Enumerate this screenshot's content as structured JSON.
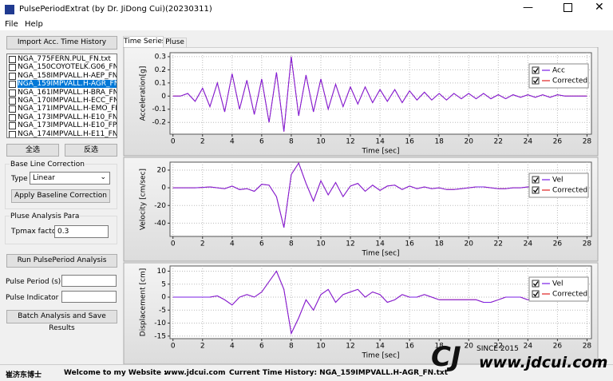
{
  "window": {
    "title": "PulsePeriodExtrat (by Dr. JiDong Cui)(20230311)"
  },
  "menu": [
    "File",
    "Help"
  ],
  "panel": {
    "import_button": "Import Acc. Time History",
    "files": [
      "NGA_775FERN.PUL_FN.txt",
      "NGA_150COYOTELK.G06_FN.t",
      "NGA_158IMPVALL.H-AEP_FN.t",
      "NGA_159IMPVALL.H-AGR_FN.t",
      "NGA_161IMPVALL.H-BRA_FN.",
      "NGA_170IMPVALL.H-ECC_FN.t",
      "NGA_171IMPVALL.H-EMO_FN.",
      "NGA_173IMPVALL.H-E10_FN.t",
      "NGA_173IMPVALL.H-E10_FP.t",
      "NGA_174IMPVALL.H-E11_FN.t"
    ],
    "select_all": "全选",
    "invert_select": "反选",
    "baseline_group": "Base Line Correction",
    "type_label": "Type",
    "type_value": "Linear",
    "apply_button": "Apply Baseline Correction",
    "pulse_group": "Pluse Analysis Para",
    "tpmax_label": "Tpmax factor",
    "tpmax_value": "0.3",
    "run_button": "Run PulsePeriod Analysis",
    "period_label": "Pulse Period (s)",
    "indicator_label": "Pulse Indicator",
    "batch_button": "Batch Analysis and Save Results"
  },
  "tabs": [
    "Time Series",
    "Pluse"
  ],
  "footer": {
    "author": "崔济东博士",
    "welcome": "Welcome to my Website :",
    "site": "www.jdcui.com",
    "current": "Current Time History: NGA_159IMPVALL.H-AGR_FN.txt",
    "since": "SINCE 2015",
    "logo_site": "www.jdcui.com"
  },
  "chart_data": [
    {
      "type": "line",
      "xlabel": "Time [sec]",
      "ylabel": "Acceleration[g]",
      "grid": true,
      "legend": "upper right",
      "x": [
        0,
        0.5,
        1,
        1.5,
        2,
        2.5,
        3,
        3.5,
        4,
        4.5,
        5,
        5.5,
        6,
        6.5,
        7,
        7.5,
        8,
        8.5,
        9,
        9.5,
        10,
        10.5,
        11,
        11.5,
        12,
        12.5,
        13,
        13.5,
        14,
        14.5,
        15,
        15.5,
        16,
        16.5,
        17,
        17.5,
        18,
        18.5,
        19,
        19.5,
        20,
        20.5,
        21,
        21.5,
        22,
        22.5,
        23,
        23.5,
        24,
        24.5,
        25,
        25.5,
        26,
        26.5,
        27,
        27.5,
        28
      ],
      "xlim": [
        -0.2,
        28.3
      ],
      "ylim": [
        -0.29,
        0.33
      ],
      "xticks": [
        0,
        2,
        4,
        6,
        8,
        10,
        12,
        14,
        16,
        18,
        20,
        22,
        24,
        26,
        28
      ],
      "yticks": [
        0.3,
        0.2,
        0.1,
        0,
        -0.1,
        -0.2
      ],
      "series": [
        {
          "name": "Corrected",
          "color": "#e02020",
          "values": [
            0,
            0,
            0.02,
            -0.04,
            0.06,
            -0.08,
            0.1,
            -0.12,
            0.17,
            -0.1,
            0.12,
            -0.14,
            0.13,
            -0.2,
            0.18,
            -0.27,
            0.3,
            -0.15,
            0.16,
            -0.12,
            0.13,
            -0.1,
            0.09,
            -0.08,
            0.07,
            -0.06,
            0.07,
            -0.05,
            0.05,
            -0.04,
            0.05,
            -0.05,
            0.04,
            -0.03,
            0.03,
            -0.03,
            0.02,
            -0.03,
            0.02,
            -0.02,
            0.02,
            -0.02,
            0.02,
            -0.02,
            0.01,
            -0.02,
            0.01,
            -0.01,
            0.01,
            -0.01,
            0.01,
            -0.01,
            0.01,
            0,
            0,
            0,
            0
          ]
        },
        {
          "name": "Acc",
          "color": "#7a1ee6",
          "values": [
            0,
            0,
            0.02,
            -0.04,
            0.06,
            -0.08,
            0.1,
            -0.12,
            0.17,
            -0.1,
            0.12,
            -0.14,
            0.13,
            -0.2,
            0.18,
            -0.27,
            0.3,
            -0.15,
            0.16,
            -0.12,
            0.13,
            -0.1,
            0.09,
            -0.08,
            0.07,
            -0.06,
            0.07,
            -0.05,
            0.05,
            -0.04,
            0.05,
            -0.05,
            0.04,
            -0.03,
            0.03,
            -0.03,
            0.02,
            -0.03,
            0.02,
            -0.02,
            0.02,
            -0.02,
            0.02,
            -0.02,
            0.01,
            -0.02,
            0.01,
            -0.01,
            0.01,
            -0.01,
            0.01,
            -0.01,
            0.01,
            0,
            0,
            0,
            0
          ]
        }
      ]
    },
    {
      "type": "line",
      "xlabel": "Time [sec]",
      "ylabel": "Velocity [cm/sec]",
      "grid": true,
      "legend": "upper right",
      "x": [
        0,
        0.5,
        1,
        1.5,
        2,
        2.5,
        3,
        3.5,
        4,
        4.5,
        5,
        5.5,
        6,
        6.5,
        7,
        7.5,
        8,
        8.5,
        9,
        9.5,
        10,
        10.5,
        11,
        11.5,
        12,
        12.5,
        13,
        13.5,
        14,
        14.5,
        15,
        15.5,
        16,
        16.5,
        17,
        17.5,
        18,
        18.5,
        19,
        19.5,
        20,
        20.5,
        21,
        21.5,
        22,
        22.5,
        23,
        23.5,
        24,
        24.5,
        25,
        25.5,
        26,
        26.5,
        27,
        27.5,
        28
      ],
      "xlim": [
        -0.2,
        28.3
      ],
      "ylim": [
        -55,
        29
      ],
      "xticks": [
        0,
        2,
        4,
        6,
        8,
        10,
        12,
        14,
        16,
        18,
        20,
        22,
        24,
        26,
        28
      ],
      "yticks": [
        20,
        0,
        -20,
        -40
      ],
      "series": [
        {
          "name": "Corrected",
          "color": "#e02020",
          "values": [
            0,
            0,
            0,
            0,
            0.5,
            1,
            0,
            -1,
            2,
            -2,
            -1,
            -4,
            4,
            3,
            -10,
            -45,
            15,
            28,
            5,
            -15,
            8,
            -8,
            6,
            -10,
            2,
            5,
            -4,
            3,
            -3,
            2,
            3,
            -2,
            2,
            -1,
            1,
            -1,
            0,
            -2,
            -2,
            -1,
            0,
            1,
            1,
            0,
            -1,
            -1,
            0,
            0,
            1,
            0,
            0,
            0,
            0,
            0,
            0,
            0,
            0
          ]
        },
        {
          "name": "Vel",
          "color": "#7a1ee6",
          "values": [
            0,
            0,
            0,
            0,
            0.5,
            1,
            0,
            -1,
            2,
            -2,
            -1,
            -4,
            4,
            3,
            -10,
            -45,
            15,
            28,
            5,
            -15,
            8,
            -8,
            6,
            -10,
            2,
            5,
            -4,
            3,
            -3,
            2,
            3,
            -2,
            2,
            -1,
            1,
            -1,
            0,
            -2,
            -2,
            -1,
            0,
            1,
            1,
            0,
            -1,
            -1,
            0,
            0,
            1,
            0,
            0,
            0,
            0,
            0,
            0,
            0,
            0
          ]
        }
      ]
    },
    {
      "type": "line",
      "xlabel": "Time [sec]",
      "ylabel": "Displacement [cm]",
      "grid": true,
      "legend": "upper right",
      "x": [
        0,
        0.5,
        1,
        1.5,
        2,
        2.5,
        3,
        3.5,
        4,
        4.5,
        5,
        5.5,
        6,
        6.5,
        7,
        7.5,
        8,
        8.5,
        9,
        9.5,
        10,
        10.5,
        11,
        11.5,
        12,
        12.5,
        13,
        13.5,
        14,
        14.5,
        15,
        15.5,
        16,
        16.5,
        17,
        17.5,
        18,
        18.5,
        19,
        19.5,
        20,
        20.5,
        21,
        21.5,
        22,
        22.5,
        23,
        23.5,
        24,
        24.5,
        25,
        25.5,
        26,
        26.5,
        27,
        27.5,
        28
      ],
      "xlim": [
        -0.2,
        28.3
      ],
      "ylim": [
        -16,
        12
      ],
      "xticks": [
        0,
        2,
        4,
        6,
        8,
        10,
        12,
        14,
        16,
        18,
        20,
        22,
        24,
        26,
        28
      ],
      "yticks": [
        10,
        5,
        0,
        -5,
        -10,
        -15
      ],
      "series": [
        {
          "name": "Corrected",
          "color": "#e02020",
          "values": [
            0,
            0,
            0,
            0,
            0,
            0,
            0.5,
            -1,
            -3,
            0,
            1,
            0,
            2,
            6,
            10,
            3,
            -14,
            -8,
            -1,
            -5,
            1,
            3,
            -2,
            1,
            2,
            3,
            0,
            2,
            1,
            -2,
            -1,
            1,
            0,
            0,
            1,
            0,
            -1,
            -1,
            -1,
            -1,
            -1,
            -1,
            -2,
            -2,
            -1,
            0,
            0,
            0,
            -1,
            0,
            0,
            1,
            1,
            1,
            1,
            1,
            1
          ]
        },
        {
          "name": "Vel",
          "color": "#7a1ee6",
          "values": [
            0,
            0,
            0,
            0,
            0,
            0,
            0.5,
            -1,
            -3,
            0,
            1,
            0,
            2,
            6,
            10,
            3,
            -14,
            -8,
            -1,
            -5,
            1,
            3,
            -2,
            1,
            2,
            3,
            0,
            2,
            1,
            -2,
            -1,
            1,
            0,
            0,
            1,
            0,
            -1,
            -1,
            -1,
            -1,
            -1,
            -1,
            -2,
            -2,
            -1,
            0,
            0,
            0,
            -1,
            0,
            0,
            1,
            1,
            1,
            1,
            1,
            1
          ]
        }
      ]
    }
  ]
}
